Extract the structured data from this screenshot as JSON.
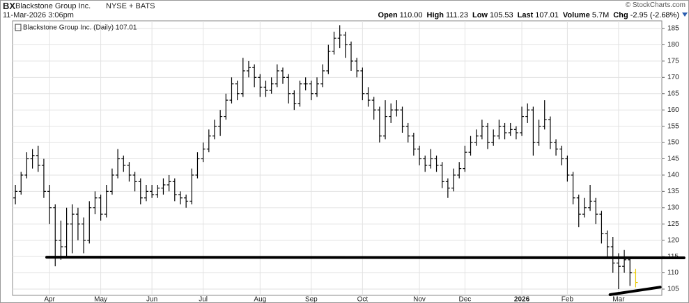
{
  "header": {
    "symbol": "BX",
    "company": "Blackstone Group Inc.",
    "exchange": "NYSE + BATS",
    "timestamp": "11-Mar-2026 3:06pm",
    "copyright": "© StockCharts.com",
    "quote": [
      {
        "label": "Open",
        "value": "110.00"
      },
      {
        "label": "High",
        "value": "111.23"
      },
      {
        "label": "Low",
        "value": "105.53"
      },
      {
        "label": "Last",
        "value": "107.01"
      },
      {
        "label": "Volume",
        "value": "5.7M"
      },
      {
        "label": "Chg",
        "value": "-2.95 (-2.68%)"
      }
    ]
  },
  "chart_data": {
    "type": "ohlc",
    "categories": [
      null,
      null,
      null,
      null,
      null,
      null,
      null,
      null,
      null,
      null,
      null,
      null,
      null,
      null,
      null,
      null,
      null,
      null,
      null,
      null,
      null,
      null,
      null,
      null,
      null,
      null,
      null,
      null,
      null,
      null,
      null,
      null,
      null,
      null,
      null,
      null,
      null,
      null,
      null,
      null,
      null,
      null,
      null,
      null,
      null,
      null,
      null,
      null,
      null,
      null,
      null,
      null,
      null,
      null,
      null,
      null,
      null,
      null,
      null,
      null,
      null,
      null,
      null,
      null,
      null,
      null,
      null,
      null,
      null,
      null,
      null,
      null,
      null,
      null,
      null,
      null,
      null,
      null,
      null,
      null,
      null,
      null,
      null,
      null,
      null,
      null,
      null,
      null,
      null,
      null,
      null,
      null,
      null,
      null,
      null,
      null,
      null,
      null,
      null,
      null,
      null,
      null,
      null,
      null,
      null,
      null,
      null,
      null,
      null,
      null
    ],
    "series": [
      {
        "name": "Blackstone Group Inc. (Daily) 107.01",
        "color": "#000000",
        "last_color": "#e8c800",
        "values": [
          [
            133,
            137,
            131,
            135
          ],
          [
            135,
            141,
            134,
            140
          ],
          [
            140,
            147,
            139,
            145
          ],
          [
            145,
            148,
            142,
            146
          ],
          [
            146,
            149,
            141,
            143
          ],
          [
            143,
            145,
            133,
            135
          ],
          [
            135,
            137,
            125,
            130
          ],
          [
            130,
            131,
            112,
            120
          ],
          [
            120,
            126,
            114,
            118
          ],
          [
            118,
            130,
            115,
            125
          ],
          [
            125,
            131,
            116,
            128
          ],
          [
            128,
            130,
            120,
            125
          ],
          [
            125,
            127,
            116,
            120
          ],
          [
            120,
            132,
            119,
            130
          ],
          [
            130,
            135,
            128,
            133
          ],
          [
            133,
            134,
            126,
            128
          ],
          [
            128,
            137,
            127,
            135
          ],
          [
            135,
            142,
            134,
            140
          ],
          [
            140,
            148,
            139,
            145
          ],
          [
            145,
            146,
            141,
            143
          ],
          [
            143,
            144,
            138,
            140
          ],
          [
            140,
            141,
            135,
            138
          ],
          [
            138,
            139,
            131,
            133
          ],
          [
            133,
            137,
            132,
            135
          ],
          [
            135,
            137,
            133,
            134
          ],
          [
            134,
            137,
            133,
            136
          ],
          [
            136,
            139,
            134,
            137
          ],
          [
            137,
            140,
            135,
            138
          ],
          [
            138,
            139,
            132,
            134
          ],
          [
            134,
            135,
            131,
            133
          ],
          [
            133,
            134,
            130,
            132
          ],
          [
            132,
            142,
            131,
            140
          ],
          [
            140,
            147,
            139,
            145
          ],
          [
            145,
            150,
            144,
            148
          ],
          [
            148,
            154,
            147,
            152
          ],
          [
            152,
            157,
            151,
            155
          ],
          [
            155,
            160,
            152,
            158
          ],
          [
            158,
            165,
            157,
            163
          ],
          [
            163,
            170,
            162,
            168
          ],
          [
            168,
            169,
            163,
            165
          ],
          [
            165,
            176,
            164,
            172
          ],
          [
            172,
            175,
            170,
            173
          ],
          [
            173,
            174,
            167,
            170
          ],
          [
            170,
            171,
            164,
            167
          ],
          [
            167,
            169,
            164,
            166
          ],
          [
            166,
            170,
            165,
            168
          ],
          [
            168,
            174,
            167,
            172
          ],
          [
            172,
            173,
            168,
            170
          ],
          [
            170,
            171,
            162,
            165
          ],
          [
            165,
            166,
            160,
            162
          ],
          [
            162,
            169,
            161,
            168
          ],
          [
            168,
            170,
            166,
            168
          ],
          [
            168,
            169,
            163,
            165
          ],
          [
            165,
            170,
            164,
            168
          ],
          [
            168,
            174,
            167,
            172
          ],
          [
            172,
            180,
            171,
            178
          ],
          [
            178,
            184,
            177,
            182
          ],
          [
            182,
            186,
            179,
            183
          ],
          [
            183,
            184,
            176,
            180
          ],
          [
            180,
            181,
            172,
            175
          ],
          [
            175,
            176,
            170,
            172
          ],
          [
            172,
            173,
            163,
            165
          ],
          [
            165,
            167,
            161,
            163
          ],
          [
            163,
            164,
            157,
            160
          ],
          [
            160,
            161,
            150,
            152
          ],
          [
            152,
            163,
            151,
            158
          ],
          [
            158,
            162,
            156,
            160
          ],
          [
            160,
            163,
            158,
            160
          ],
          [
            160,
            161,
            153,
            155
          ],
          [
            155,
            156,
            150,
            152
          ],
          [
            152,
            153,
            146,
            148
          ],
          [
            148,
            149,
            143,
            145
          ],
          [
            145,
            146,
            141,
            143
          ],
          [
            143,
            148,
            142,
            145
          ],
          [
            145,
            146,
            141,
            143
          ],
          [
            143,
            144,
            136,
            138
          ],
          [
            138,
            139,
            133,
            136
          ],
          [
            136,
            142,
            135,
            140
          ],
          [
            140,
            144,
            139,
            142
          ],
          [
            142,
            149,
            141,
            147
          ],
          [
            147,
            152,
            146,
            150
          ],
          [
            150,
            154,
            149,
            152
          ],
          [
            152,
            157,
            151,
            155
          ],
          [
            155,
            156,
            148,
            150
          ],
          [
            150,
            154,
            149,
            152
          ],
          [
            152,
            157,
            151,
            155
          ],
          [
            155,
            156,
            151,
            153
          ],
          [
            153,
            156,
            152,
            154
          ],
          [
            154,
            155,
            151,
            153
          ],
          [
            153,
            161,
            152,
            158
          ],
          [
            158,
            162,
            156,
            160
          ],
          [
            160,
            161,
            146,
            150
          ],
          [
            150,
            157,
            149,
            155
          ],
          [
            155,
            163,
            154,
            157
          ],
          [
            157,
            158,
            148,
            150
          ],
          [
            150,
            151,
            146,
            148
          ],
          [
            148,
            149,
            143,
            145
          ],
          [
            145,
            146,
            138,
            140
          ],
          [
            140,
            141,
            131,
            133
          ],
          [
            133,
            134,
            124,
            128
          ],
          [
            128,
            133,
            127,
            130
          ],
          [
            130,
            137,
            129,
            132
          ],
          [
            132,
            133,
            125,
            128
          ],
          [
            128,
            129,
            119,
            122
          ],
          [
            122,
            123,
            115,
            118
          ],
          [
            118,
            121,
            110,
            113
          ],
          [
            113,
            116,
            105,
            112
          ],
          [
            112,
            117,
            110,
            114
          ],
          [
            114,
            115,
            106,
            110
          ],
          [
            110,
            111.23,
            105.53,
            107.01
          ]
        ]
      }
    ],
    "trendlines": [
      {
        "x": [
          5.5,
          117.5
        ],
        "y": [
          114.8,
          114.6
        ]
      },
      {
        "x": [
          104.5,
          113.3
        ],
        "y": [
          103.3,
          105.6
        ]
      }
    ],
    "xlim": [
      -0.5,
      113.6
    ],
    "xticks": [
      {
        "value": 6,
        "label": "Apr"
      },
      {
        "value": 15,
        "label": "May"
      },
      {
        "value": 24,
        "label": "Jun"
      },
      {
        "value": 33,
        "label": "Jul"
      },
      {
        "value": 43,
        "label": "Aug"
      },
      {
        "value": 52,
        "label": "Sep"
      },
      {
        "value": 61,
        "label": "Oct"
      },
      {
        "value": 71,
        "label": "Nov"
      },
      {
        "value": 79,
        "label": "Dec"
      },
      {
        "value": 89,
        "label": "2026"
      },
      {
        "value": 97,
        "label": "Feb"
      },
      {
        "value": 106,
        "label": "Mar"
      }
    ],
    "ylim": [
      103.08,
      187.35
    ],
    "yticks": [
      105,
      110,
      115,
      120,
      125,
      130,
      135,
      140,
      145,
      150,
      155,
      160,
      165,
      170,
      175,
      180,
      185
    ],
    "grid": true
  }
}
